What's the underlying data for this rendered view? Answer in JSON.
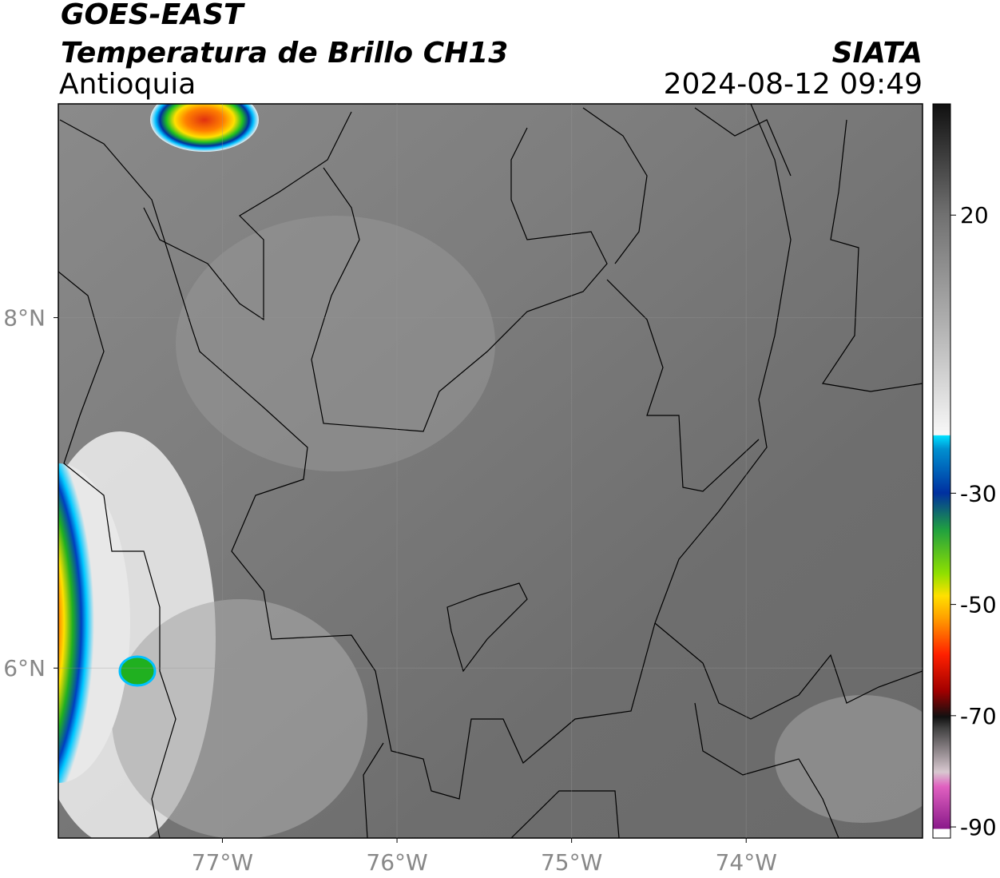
{
  "header": {
    "title": "GOES-EAST",
    "subtitle": "Temperatura de Brillo CH13",
    "region": "Antioquia",
    "source": "SIATA",
    "datetime": "2024-08-12 09:49"
  },
  "map": {
    "xlim": [
      -77.94,
      -72.99
    ],
    "ylim": [
      5.03,
      9.22
    ],
    "xticks": [
      {
        "value": -77,
        "label": "77°W"
      },
      {
        "value": -76,
        "label": "76°W"
      },
      {
        "value": -75,
        "label": "75°W"
      },
      {
        "value": -74,
        "label": "74°W"
      }
    ],
    "yticks": [
      {
        "value": 8,
        "label": "8°N"
      },
      {
        "value": 6,
        "label": "6°N"
      }
    ],
    "grid": true
  },
  "colorbar": {
    "lim": [
      -92,
      40
    ],
    "ticks": [
      20,
      -30,
      -50,
      -70,
      -90
    ]
  }
}
